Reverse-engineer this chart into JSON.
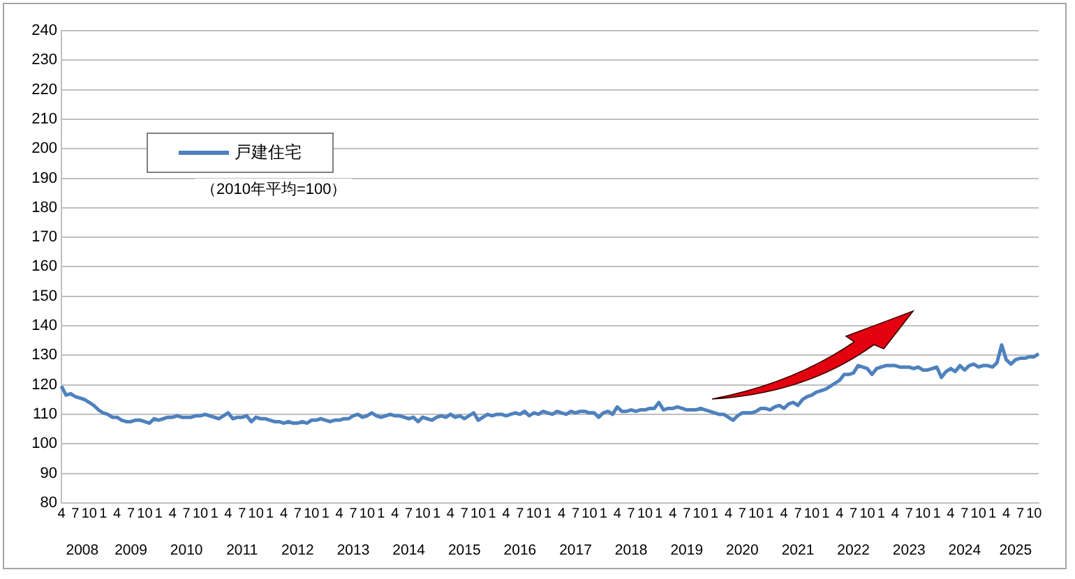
{
  "chart_data": {
    "type": "line",
    "legend": "top left",
    "grid": "y",
    "marker": "none",
    "line_style": "solid",
    "annotations": [
      "（2010年平均=100）"
    ],
    "ylim": [
      80,
      240
    ],
    "yticks": [
      80,
      90,
      100,
      110,
      120,
      130,
      140,
      150,
      160,
      170,
      180,
      190,
      200,
      210,
      220,
      230,
      240
    ],
    "categories": [
      "4",
      null,
      null,
      "7",
      null,
      null,
      "10",
      null,
      null,
      "1",
      null,
      null,
      "4",
      null,
      null,
      "7",
      null,
      null,
      "10",
      null,
      null,
      "1",
      null,
      null,
      "4",
      null,
      null,
      "7",
      null,
      null,
      "10",
      null,
      null,
      "1",
      null,
      null,
      "4",
      null,
      null,
      "7",
      null,
      null,
      "10",
      null,
      null,
      "1",
      null,
      null,
      "4",
      null,
      null,
      "7",
      null,
      null,
      "10",
      null,
      null,
      "1",
      null,
      null,
      "4",
      null,
      null,
      "7",
      null,
      null,
      "10",
      null,
      null,
      "1",
      null,
      null,
      "4",
      null,
      null,
      "7",
      null,
      null,
      "10",
      null,
      null,
      "1",
      null,
      null,
      "4",
      null,
      null,
      "7",
      null,
      null,
      "10",
      null,
      null,
      "1",
      null,
      null,
      "4",
      null,
      null,
      "7",
      null,
      null,
      "10",
      null,
      null,
      "1",
      null,
      null,
      "4",
      null,
      null,
      "7",
      null,
      null,
      "10",
      null,
      null,
      "1",
      null,
      null,
      "4",
      null,
      null,
      "7",
      null,
      null,
      "10",
      null,
      null,
      "1",
      null,
      null,
      "4",
      null,
      null,
      "7",
      null,
      null,
      "10",
      null,
      null,
      "1",
      null,
      null,
      "4",
      null,
      null,
      "7",
      null,
      null,
      "10",
      null,
      null,
      "1",
      null,
      null,
      "4",
      null,
      null,
      "7",
      null,
      null,
      "10",
      null,
      null,
      "1",
      null,
      null,
      "4",
      null,
      null,
      "7",
      null,
      null,
      "10",
      null,
      null,
      "1",
      null,
      null,
      "4",
      null,
      null,
      "7",
      null,
      null,
      "10",
      null,
      null,
      "1",
      null,
      null,
      "4",
      null,
      null,
      "7",
      null,
      null,
      "10",
      null,
      null,
      "1",
      null,
      null,
      "4",
      null,
      null,
      "7",
      null,
      null,
      "10",
      null
    ],
    "x2lim": [
      "2008-04",
      "2025-11"
    ],
    "x2ticks": [
      {
        "value": "2008-08-16",
        "label": "2008"
      },
      {
        "value": "2009-07",
        "label": "2009"
      },
      {
        "value": "2010-07",
        "label": "2010"
      },
      {
        "value": "2011-07",
        "label": "2011"
      },
      {
        "value": "2012-07",
        "label": "2012"
      },
      {
        "value": "2013-07",
        "label": "2013"
      },
      {
        "value": "2014-07",
        "label": "2014"
      },
      {
        "value": "2015-07",
        "label": "2015"
      },
      {
        "value": "2016-07",
        "label": "2016"
      },
      {
        "value": "2017-07",
        "label": "2017"
      },
      {
        "value": "2018-07",
        "label": "2018"
      },
      {
        "value": "2019-07",
        "label": "2019"
      },
      {
        "value": "2020-07",
        "label": "2020"
      },
      {
        "value": "2021-07",
        "label": "2021"
      },
      {
        "value": "2022-07",
        "label": "2022"
      },
      {
        "value": "2023-07",
        "label": "2023"
      },
      {
        "value": "2024-07",
        "label": "2024"
      },
      {
        "value": "2025-06",
        "label": "2025"
      }
    ],
    "series": [
      {
        "name": "戸建住宅",
        "color": "#4f81bd",
        "values": [
          119.5,
          116.5,
          117,
          116,
          115.5,
          115,
          114,
          113,
          111.5,
          110.5,
          110,
          109,
          109,
          108,
          107.5,
          107.5,
          108,
          108,
          107.5,
          107,
          108.5,
          108,
          108.5,
          109,
          109,
          109.5,
          109,
          109,
          109,
          109.5,
          109.5,
          110,
          109.5,
          109,
          108.5,
          109.5,
          110.5,
          108.5,
          109,
          109,
          109.5,
          107.5,
          109,
          108.5,
          108.5,
          108,
          107.5,
          107.5,
          107,
          107.5,
          107,
          107,
          107.5,
          107,
          108,
          108,
          108.5,
          108,
          107.5,
          108,
          108,
          108.5,
          108.5,
          109.5,
          110,
          109,
          109.5,
          110.5,
          109.5,
          109,
          109.5,
          110,
          109.5,
          109.5,
          109,
          108.5,
          109,
          107.5,
          109,
          108.5,
          108,
          109,
          109.5,
          109,
          110,
          109,
          109.5,
          108.5,
          109.5,
          110.5,
          108,
          109,
          110,
          109.5,
          110,
          110,
          109.5,
          110,
          110.5,
          110,
          111,
          109.5,
          110.5,
          110,
          111,
          110.5,
          110,
          111,
          110.5,
          110,
          111,
          110.5,
          111,
          111,
          110.5,
          110.5,
          109,
          110.5,
          111,
          110,
          112.5,
          111,
          111,
          111.5,
          111,
          111.5,
          111.5,
          112,
          112,
          114,
          111.5,
          112,
          112,
          112.5,
          112,
          111.5,
          111.5,
          111.5,
          112,
          111.5,
          111,
          110.5,
          110,
          110,
          109,
          108,
          109.5,
          110.5,
          110.5,
          110.5,
          111,
          112,
          112,
          111.5,
          112.5,
          113,
          112,
          113.5,
          114,
          113,
          115,
          116,
          116.5,
          117.5,
          118,
          118.5,
          119.5,
          120.5,
          121.5,
          123.5,
          123.5,
          124,
          126.5,
          126,
          125.5,
          123.5,
          125.5,
          126,
          126.5,
          126.5,
          126.5,
          126,
          126,
          126,
          125.5,
          126,
          125,
          125,
          125.5,
          126,
          122.5,
          124.5,
          125.5,
          124.5,
          126.5,
          125,
          126.5,
          127,
          126,
          126.5,
          126.5,
          126,
          127.5,
          133.5,
          128.5,
          127,
          128.5,
          129,
          129,
          129.5,
          129.5,
          130.5
        ]
      }
    ]
  }
}
